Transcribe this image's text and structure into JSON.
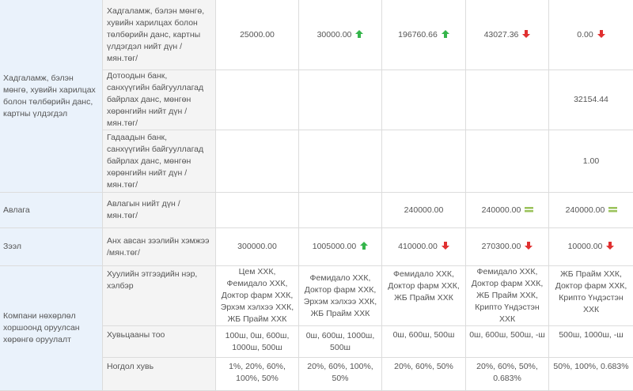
{
  "colors": {
    "up": "#35b54b",
    "down": "#e03030",
    "flat": "#9ac25a",
    "category_bg": "#eaf2fb",
    "subcategory_bg": "#f4f4f4"
  },
  "icons": {
    "up": "up-arrow-icon",
    "down": "down-arrow-icon",
    "flat": "equal-icon"
  },
  "groups": {
    "deposits": {
      "label": "Хадгаламж, бэлэн мөнгө, хувийн харилцах болон төлбөрийн данс, картны үлдэгдэл"
    },
    "receivables": {
      "label": "Авлага"
    },
    "loans": {
      "label": "Зээл"
    },
    "ownership": {
      "label": "Компани нөхөрлөл хоршоонд оруулсан хөрөнгө оруулалт"
    }
  },
  "rows": {
    "deposits_total": {
      "label": "Хадгаламж, бэлэн мөнгө, хувийн харилцах болон төлбөрийн данс, картны үлдэгдэл нийт дүн /мян.төг/",
      "values": [
        "25000.00",
        "30000.00",
        "196760.66",
        "43027.36",
        "0.00"
      ],
      "trends": [
        "",
        "up",
        "up",
        "down",
        "down"
      ]
    },
    "domestic_bank": {
      "label": "Дотоодын банк, санхүүгийн байгууллагад байрлах данс, мөнгөн хөрөнгийн нийт дүн /мян.төг/",
      "values": [
        "",
        "",
        "",
        "",
        "32154.44"
      ]
    },
    "foreign_bank": {
      "label": "Гадаадын банк, санхүүгийн байгууллагад байрлах данс, мөнгөн хөрөнгийн нийт дүн /мян.төг/",
      "values": [
        "",
        "",
        "",
        "",
        "1.00"
      ]
    },
    "receivables_total": {
      "label": "Авлагын нийт дүн /мян.төг/",
      "values": [
        "",
        "",
        "240000.00",
        "240000.00",
        "240000.00"
      ],
      "trends": [
        "",
        "",
        "",
        "flat",
        "flat"
      ]
    },
    "loan_amount": {
      "label": "Анх авсан зээлийн хэмжээ /мян.төг/",
      "values": [
        "300000.00",
        "1005000.00",
        "410000.00",
        "270300.00",
        "10000.00"
      ],
      "trends": [
        "",
        "up",
        "down",
        "down",
        "down"
      ]
    },
    "entity_name": {
      "label": "Хуулийн этгээдийн нэр, хэлбэр",
      "values": [
        "Цем ХХК, Фемидало ХХК, Доктор фарм ХХК, Эрхэм хэлхээ ХХК, ЖБ Прайм ХХК",
        "Фемидало ХХК, Доктор фарм ХХК, Эрхэм хэлхээ ХХК, ЖБ Прайм ХХК",
        "Фемидало ХХК, Доктор фарм ХХК, ЖБ Прайм ХХК",
        "Фемидало ХХК, Доктор фарм ХХК, ЖБ Прайм ХХК, Крипто Үндэстэн ХХК",
        "ЖБ Прайм ХХК, Доктор фарм ХХК, Крипто Үндэстэн ХХК"
      ]
    },
    "share_count": {
      "label": "Хувьцааны тоо",
      "values": [
        "100ш, 0ш, 600ш, 1000ш, 500ш",
        "0ш, 600ш, 1000ш, 500ш",
        "0ш, 600ш, 500ш",
        "0ш, 600ш, 500ш, -ш",
        "500ш, 1000ш, -ш"
      ]
    },
    "stake_percent": {
      "label": "Ногдол хувь",
      "values": [
        "1%, 20%, 60%, 100%, 50%",
        "20%, 60%, 100%, 50%",
        "20%, 60%, 50%",
        "20%, 60%, 50%, 0.683%",
        "50%, 100%, 0.683%"
      ]
    }
  }
}
